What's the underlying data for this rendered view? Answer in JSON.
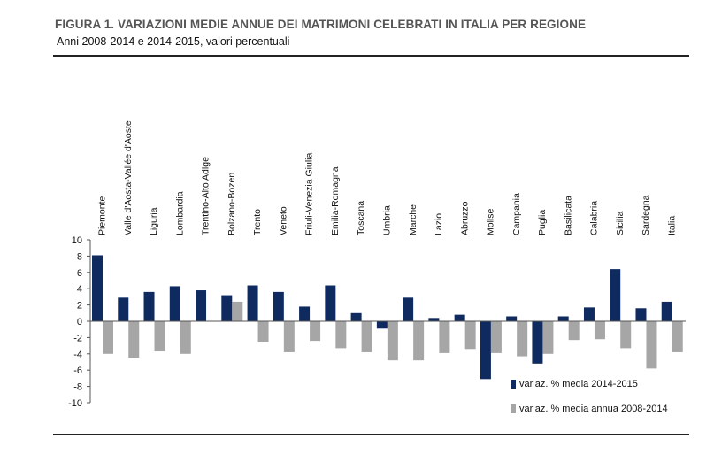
{
  "header": {
    "title": "FIGURA 1. VARIAZIONI MEDIE ANNUE DEI MATRIMONI CELEBRATI IN ITALIA PER REGIONE",
    "subtitle": "Anni 2008-2014 e 2014-2015, valori percentuali"
  },
  "chart_data": {
    "type": "bar",
    "title": "FIGURA 1. VARIAZIONI MEDIE ANNUE DEI MATRIMONI CELEBRATI IN ITALIA PER REGIONE",
    "subtitle": "Anni 2008-2014 e 2014-2015, valori percentuali",
    "xlabel": "",
    "ylabel": "",
    "ylim": [
      -10,
      10
    ],
    "yticks": [
      10,
      8,
      6,
      4,
      2,
      0,
      -2,
      -4,
      -6,
      -8,
      -10
    ],
    "grid": false,
    "legend_position": "bottom-right",
    "category_label_position": "top",
    "categories": [
      "Piemonte",
      "Valle d'Aosta-Vallée d'Aoste",
      "Liguria",
      "Lombardia",
      "Trentino-Alto Adige",
      "Bolzano-Bozen",
      "Trento",
      "Veneto",
      "Friuli-Venezia Giulia",
      "Emilia-Romagna",
      "Toscana",
      "Umbria",
      "Marche",
      "Lazio",
      "Abruzzo",
      "Molise",
      "Campania",
      "Puglia",
      "Basilicata",
      "Calabria",
      "Sicilia",
      "Sardegna",
      "Italia"
    ],
    "series": [
      {
        "name": "variaz. % media 2014-2015",
        "color": "#0f2a5e",
        "values": [
          8.1,
          2.9,
          3.6,
          4.3,
          3.8,
          3.2,
          4.4,
          3.6,
          1.8,
          4.4,
          1.0,
          -0.9,
          2.9,
          0.4,
          0.8,
          -7.1,
          0.6,
          -5.2,
          0.6,
          1.7,
          6.4,
          1.6,
          2.4
        ]
      },
      {
        "name": "variaz. % media annua 2008-2014",
        "color": "#a6a6a6",
        "values": [
          -4.0,
          -4.5,
          -3.7,
          -4.0,
          0.0,
          2.4,
          -2.6,
          -3.8,
          -2.4,
          -3.3,
          -3.8,
          -4.8,
          -4.8,
          -3.9,
          -3.4,
          -3.9,
          -4.3,
          -4.0,
          -2.3,
          -2.2,
          -3.3,
          -5.8,
          -3.8
        ]
      }
    ]
  }
}
